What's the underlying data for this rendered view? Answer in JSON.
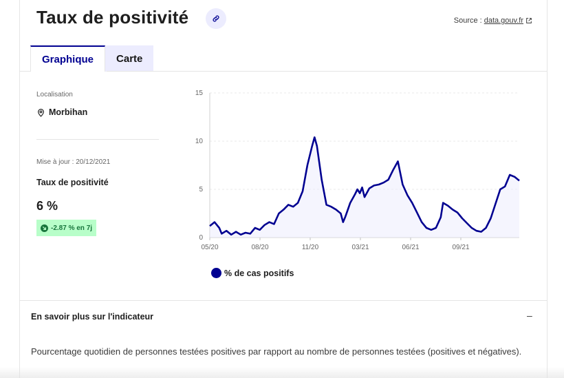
{
  "header": {
    "title": "Taux de positivité",
    "source_prefix": "Source : ",
    "source_link": "data.gouv.fr"
  },
  "tabs": [
    {
      "label": "Graphique",
      "active": true
    },
    {
      "label": "Carte",
      "active": false
    }
  ],
  "sidebar": {
    "location_label": "Localisation",
    "location_value": "Morbihan",
    "update_label": "Mise à jour : 20/12/2021",
    "indicator_name": "Taux de positivité",
    "indicator_value": "6 %",
    "trend": "-2.87 % en 7j"
  },
  "legend": {
    "label": "% de cas positifs"
  },
  "accordion": {
    "title": "En savoir plus sur l'indicateur",
    "toggle": "–",
    "body": "Pourcentage quotidien de personnes testées positives par rapport au nombre de personnes testées (positives et négatives)."
  },
  "colors": {
    "accent": "#000091",
    "badge_bg": "#b8fec9",
    "badge_text": "#18753c",
    "tab_inactive_bg": "#ececfe"
  },
  "chart_data": {
    "type": "area",
    "ylim": [
      0,
      15
    ],
    "yticks": [
      0,
      5,
      10,
      15
    ],
    "xticks": [
      "05/20",
      "08/20",
      "11/20",
      "03/21",
      "06/21",
      "09/21"
    ],
    "series": [
      {
        "name": "% de cas positifs",
        "points": [
          [
            0,
            1.2
          ],
          [
            2,
            1.6
          ],
          [
            4,
            1.0
          ],
          [
            5,
            0.4
          ],
          [
            7,
            0.7
          ],
          [
            9,
            0.3
          ],
          [
            11,
            0.6
          ],
          [
            13,
            0.3
          ],
          [
            15,
            0.5
          ],
          [
            17,
            0.4
          ],
          [
            19,
            1.0
          ],
          [
            21,
            0.8
          ],
          [
            23,
            1.3
          ],
          [
            25,
            1.6
          ],
          [
            27,
            1.4
          ],
          [
            29,
            2.5
          ],
          [
            31,
            2.9
          ],
          [
            33,
            3.4
          ],
          [
            35,
            3.2
          ],
          [
            37,
            3.6
          ],
          [
            39,
            4.8
          ],
          [
            41,
            7.5
          ],
          [
            43,
            9.5
          ],
          [
            44,
            10.4
          ],
          [
            45,
            9.5
          ],
          [
            47,
            6.0
          ],
          [
            49,
            3.4
          ],
          [
            51,
            3.2
          ],
          [
            53,
            2.9
          ],
          [
            55,
            2.5
          ],
          [
            56,
            1.6
          ],
          [
            57,
            2.2
          ],
          [
            59,
            3.6
          ],
          [
            61,
            4.5
          ],
          [
            62,
            5.0
          ],
          [
            63,
            4.6
          ],
          [
            64,
            5.2
          ],
          [
            65,
            4.2
          ],
          [
            67,
            5.1
          ],
          [
            69,
            5.4
          ],
          [
            71,
            5.5
          ],
          [
            73,
            5.7
          ],
          [
            75,
            6.0
          ],
          [
            77,
            7.0
          ],
          [
            79,
            7.9
          ],
          [
            81,
            5.5
          ],
          [
            83,
            4.4
          ],
          [
            85,
            3.6
          ],
          [
            87,
            2.6
          ],
          [
            89,
            1.6
          ],
          [
            91,
            1.0
          ],
          [
            93,
            0.8
          ],
          [
            95,
            1.0
          ],
          [
            97,
            2.1
          ],
          [
            98,
            3.6
          ],
          [
            100,
            3.3
          ],
          [
            102,
            2.9
          ],
          [
            104,
            2.6
          ],
          [
            106,
            2.0
          ],
          [
            108,
            1.5
          ],
          [
            110,
            1.0
          ],
          [
            112,
            0.7
          ],
          [
            114,
            0.6
          ],
          [
            116,
            1.0
          ],
          [
            118,
            2.0
          ],
          [
            120,
            3.5
          ],
          [
            122,
            5.0
          ],
          [
            124,
            5.3
          ],
          [
            126,
            6.5
          ],
          [
            128,
            6.3
          ],
          [
            130,
            5.9
          ]
        ]
      }
    ]
  }
}
